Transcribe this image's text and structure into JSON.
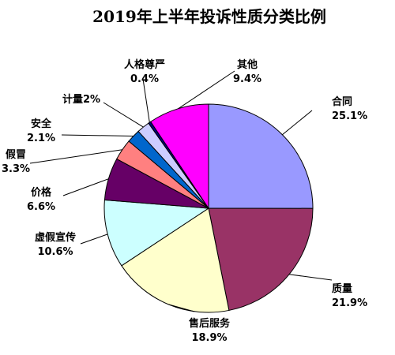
{
  "chart_data": {
    "type": "pie",
    "title": "2019年上半年投诉性质分类比例",
    "slices": [
      {
        "name": "合同",
        "value": 25.1,
        "label": "25.1%",
        "color": "#9999ff"
      },
      {
        "name": "质量",
        "value": 21.9,
        "label": "21.9%",
        "color": "#993366"
      },
      {
        "name": "售后服务",
        "value": 18.9,
        "label": "18.9%",
        "color": "#ffffcc"
      },
      {
        "name": "虚假宣传",
        "value": 10.6,
        "label": "10.6%",
        "color": "#ccffff"
      },
      {
        "name": "价格",
        "value": 6.6,
        "label": "6.6%",
        "color": "#660066"
      },
      {
        "name": "假冒",
        "value": 3.3,
        "label": "3.3%",
        "color": "#ff8080"
      },
      {
        "name": "安全",
        "value": 2.1,
        "label": "2.1%",
        "color": "#0066cc"
      },
      {
        "name": "计量",
        "value": 2.0,
        "label": "2%",
        "color": "#ccccff"
      },
      {
        "name": "人格尊严",
        "value": 0.4,
        "label": "0.4%",
        "color": "#000080"
      },
      {
        "name": "其他",
        "value": 9.4,
        "label": "9.4%",
        "color": "#ff00ff"
      }
    ],
    "legend": "none",
    "data_labels": "outside with leader lines"
  }
}
